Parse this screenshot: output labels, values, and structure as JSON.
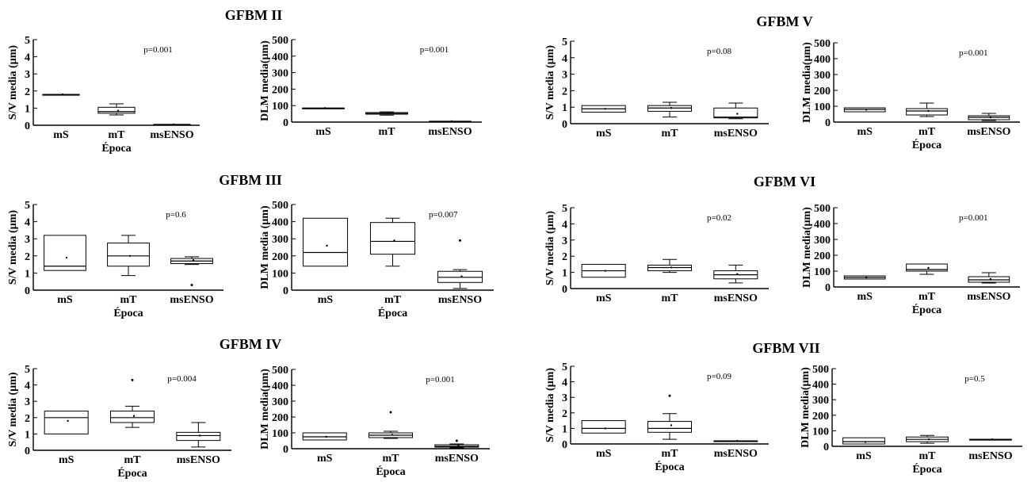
{
  "chart_data": [
    {
      "type": "box",
      "group": "GFBM II",
      "show_title": true,
      "ylabel": "S/V media (µm)",
      "xlabel": "Época",
      "p_value": "p=0.001",
      "ylim": [
        0,
        5
      ],
      "yticks": [
        "0",
        "1",
        "2",
        "3",
        "4",
        "5"
      ],
      "categories": [
        "mS",
        "mT",
        "msENSO"
      ],
      "boxes": [
        {
          "q1": 1.8,
          "median": 1.8,
          "q3": 1.8,
          "whisker_low": 1.8,
          "whisker_high": 1.8,
          "mean": 1.8,
          "outliers": []
        },
        {
          "q1": 0.7,
          "median": 0.8,
          "q3": 1.05,
          "whisker_low": 0.6,
          "whisker_high": 1.25,
          "mean": 0.85,
          "outliers": []
        },
        {
          "q1": 0.05,
          "median": 0.05,
          "q3": 0.05,
          "whisker_low": 0.05,
          "whisker_high": 0.05,
          "mean": 0.05,
          "outliers": []
        }
      ]
    },
    {
      "type": "box",
      "group": "GFBM II",
      "show_title": false,
      "ylabel": "DLM media(µm)",
      "xlabel": "",
      "p_value": "p=0.001",
      "ylim": [
        0,
        500
      ],
      "yticks": [
        "0",
        "100",
        "200",
        "300",
        "400",
        "500"
      ],
      "categories": [
        "mS",
        "mT",
        "msENSO"
      ],
      "boxes": [
        {
          "q1": 85,
          "median": 85,
          "q3": 85,
          "whisker_low": 85,
          "whisker_high": 85,
          "mean": 85,
          "outliers": []
        },
        {
          "q1": 48,
          "median": 52,
          "q3": 58,
          "whisker_low": 42,
          "whisker_high": 62,
          "mean": 52,
          "outliers": []
        },
        {
          "q1": 5,
          "median": 5,
          "q3": 5,
          "whisker_low": 5,
          "whisker_high": 5,
          "mean": 5,
          "outliers": []
        }
      ]
    },
    {
      "type": "box",
      "group": "GFBM III",
      "show_title": true,
      "ylabel": "S/V media (µm)",
      "xlabel": "Época",
      "p_value": "p=0.6",
      "ylim": [
        0,
        5
      ],
      "yticks": [
        "0",
        "1",
        "2",
        "3",
        "4",
        "5"
      ],
      "categories": [
        "mS",
        "mT",
        "msENSO"
      ],
      "boxes": [
        {
          "q1": 1.15,
          "median": 1.4,
          "q3": 3.2,
          "whisker_low": 1.15,
          "whisker_high": 3.2,
          "mean": 1.9,
          "outliers": []
        },
        {
          "q1": 1.4,
          "median": 2.0,
          "q3": 2.75,
          "whisker_low": 0.85,
          "whisker_high": 3.2,
          "mean": 2.0,
          "outliers": []
        },
        {
          "q1": 1.55,
          "median": 1.7,
          "q3": 1.85,
          "whisker_low": 1.5,
          "whisker_high": 1.95,
          "mean": 1.75,
          "outliers": [
            0.3
          ]
        }
      ]
    },
    {
      "type": "box",
      "group": "GFBM III",
      "show_title": false,
      "ylabel": "DLM media (µm)",
      "xlabel": "Época",
      "p_value": "p=0.007",
      "ylim": [
        0,
        500
      ],
      "yticks": [
        "0",
        "100",
        "200",
        "300",
        "400",
        "500"
      ],
      "categories": [
        "mS",
        "mT",
        "msENSO"
      ],
      "boxes": [
        {
          "q1": 140,
          "median": 220,
          "q3": 420,
          "whisker_low": 140,
          "whisker_high": 420,
          "mean": 260,
          "outliers": []
        },
        {
          "q1": 210,
          "median": 285,
          "q3": 395,
          "whisker_low": 140,
          "whisker_high": 420,
          "mean": 290,
          "outliers": []
        },
        {
          "q1": 45,
          "median": 75,
          "q3": 110,
          "whisker_low": 10,
          "whisker_high": 120,
          "mean": 80,
          "outliers": [
            290
          ]
        }
      ]
    },
    {
      "type": "box",
      "group": "GFBM IV",
      "show_title": true,
      "ylabel": "S/V media (µm)",
      "xlabel": "Época",
      "p_value": "p=0.004",
      "ylim": [
        0,
        5
      ],
      "yticks": [
        "0",
        "1",
        "2",
        "3",
        "4",
        "5"
      ],
      "categories": [
        "mS",
        "mT",
        "msENSO"
      ],
      "boxes": [
        {
          "q1": 1.0,
          "median": 2.0,
          "q3": 2.4,
          "whisker_low": 1.0,
          "whisker_high": 2.4,
          "mean": 1.8,
          "outliers": []
        },
        {
          "q1": 1.7,
          "median": 2.0,
          "q3": 2.4,
          "whisker_low": 1.4,
          "whisker_high": 2.7,
          "mean": 2.1,
          "outliers": [
            4.3
          ]
        },
        {
          "q1": 0.6,
          "median": 0.9,
          "q3": 1.1,
          "whisker_low": 0.2,
          "whisker_high": 1.7,
          "mean": 0.9,
          "outliers": []
        }
      ]
    },
    {
      "type": "box",
      "group": "GFBM IV",
      "show_title": false,
      "ylabel": "DLM media(µm)",
      "xlabel": "Época",
      "p_value": "p=0.001",
      "ylim": [
        0,
        500
      ],
      "yticks": [
        "0",
        "100",
        "200",
        "300",
        "400",
        "500"
      ],
      "categories": [
        "mS",
        "mT",
        "msENSO"
      ],
      "boxes": [
        {
          "q1": 55,
          "median": 75,
          "q3": 100,
          "whisker_low": 55,
          "whisker_high": 100,
          "mean": 75,
          "outliers": []
        },
        {
          "q1": 70,
          "median": 85,
          "q3": 100,
          "whisker_low": 65,
          "whisker_high": 110,
          "mean": 88,
          "outliers": [
            230
          ]
        },
        {
          "q1": 10,
          "median": 15,
          "q3": 25,
          "whisker_low": 5,
          "whisker_high": 30,
          "mean": 18,
          "outliers": [
            50
          ]
        }
      ]
    },
    {
      "type": "box",
      "group": "GFBM V",
      "show_title": true,
      "ylabel": "S/V media (µm)",
      "xlabel": "",
      "p_value": "p=0.08",
      "ylim": [
        0,
        5
      ],
      "yticks": [
        "0",
        "1",
        "2",
        "3",
        "4",
        "5"
      ],
      "categories": [
        "mS",
        "mT",
        "msENSO"
      ],
      "boxes": [
        {
          "q1": 0.7,
          "median": 0.9,
          "q3": 1.1,
          "whisker_low": 0.7,
          "whisker_high": 1.1,
          "mean": 0.9,
          "outliers": []
        },
        {
          "q1": 0.75,
          "median": 0.95,
          "q3": 1.1,
          "whisker_low": 0.4,
          "whisker_high": 1.3,
          "mean": 0.95,
          "outliers": []
        },
        {
          "q1": 0.35,
          "median": 0.4,
          "q3": 0.95,
          "whisker_low": 0.3,
          "whisker_high": 1.25,
          "mean": 0.6,
          "outliers": []
        }
      ]
    },
    {
      "type": "box",
      "group": "GFBM V",
      "show_title": false,
      "ylabel": "DLM media(µm)",
      "xlabel": "Época",
      "p_value": "p=0.001",
      "ylim": [
        0,
        500
      ],
      "yticks": [
        "0",
        "100",
        "200",
        "300",
        "400",
        "500"
      ],
      "categories": [
        "mS",
        "mT",
        "msENSO"
      ],
      "boxes": [
        {
          "q1": 65,
          "median": 80,
          "q3": 90,
          "whisker_low": 65,
          "whisker_high": 90,
          "mean": 78,
          "outliers": []
        },
        {
          "q1": 45,
          "median": 70,
          "q3": 85,
          "whisker_low": 35,
          "whisker_high": 120,
          "mean": 70,
          "outliers": []
        },
        {
          "q1": 15,
          "median": 30,
          "q3": 40,
          "whisker_low": 10,
          "whisker_high": 55,
          "mean": 30,
          "outliers": []
        }
      ]
    },
    {
      "type": "box",
      "group": "GFBM VI",
      "show_title": true,
      "ylabel": "S/V media (µm)",
      "xlabel": "",
      "p_value": "p=0.02",
      "ylim": [
        0,
        5
      ],
      "yticks": [
        "0",
        "1",
        "2",
        "3",
        "4",
        "5"
      ],
      "categories": [
        "mS",
        "mT",
        "msENSO"
      ],
      "boxes": [
        {
          "q1": 0.7,
          "median": 1.1,
          "q3": 1.5,
          "whisker_low": 0.7,
          "whisker_high": 1.5,
          "mean": 1.1,
          "outliers": []
        },
        {
          "q1": 1.1,
          "median": 1.3,
          "q3": 1.45,
          "whisker_low": 1.0,
          "whisker_high": 1.8,
          "mean": 1.3,
          "outliers": []
        },
        {
          "q1": 0.6,
          "median": 0.85,
          "q3": 1.1,
          "whisker_low": 0.35,
          "whisker_high": 1.45,
          "mean": 0.9,
          "outliers": []
        }
      ]
    },
    {
      "type": "box",
      "group": "GFBM VI",
      "show_title": false,
      "ylabel": "DLM media(µm)",
      "xlabel": "Época",
      "p_value": "p=0.001",
      "ylim": [
        0,
        500
      ],
      "yticks": [
        "0",
        "100",
        "200",
        "300",
        "400",
        "500"
      ],
      "categories": [
        "mS",
        "mT",
        "msENSO"
      ],
      "boxes": [
        {
          "q1": 50,
          "median": 60,
          "q3": 70,
          "whisker_low": 50,
          "whisker_high": 70,
          "mean": 60,
          "outliers": []
        },
        {
          "q1": 100,
          "median": 110,
          "q3": 145,
          "whisker_low": 80,
          "whisker_high": 145,
          "mean": 120,
          "outliers": []
        },
        {
          "q1": 30,
          "median": 45,
          "q3": 65,
          "whisker_low": 25,
          "whisker_high": 90,
          "mean": 50,
          "outliers": []
        }
      ]
    },
    {
      "type": "box",
      "group": "GFBM VII",
      "show_title": true,
      "ylabel": "S/V media (µm)",
      "xlabel": "Época",
      "p_value": "p=0.09",
      "ylim": [
        0,
        5
      ],
      "yticks": [
        "0",
        "1",
        "2",
        "3",
        "4",
        "5"
      ],
      "categories": [
        "mS",
        "mT",
        "msENSO"
      ],
      "boxes": [
        {
          "q1": 0.7,
          "median": 1.0,
          "q3": 1.5,
          "whisker_low": 0.7,
          "whisker_high": 1.5,
          "mean": 1.0,
          "outliers": []
        },
        {
          "q1": 0.75,
          "median": 1.0,
          "q3": 1.45,
          "whisker_low": 0.3,
          "whisker_high": 1.95,
          "mean": 1.2,
          "outliers": [
            3.1
          ]
        },
        {
          "q1": 0.2,
          "median": 0.2,
          "q3": 0.2,
          "whisker_low": 0.2,
          "whisker_high": 0.2,
          "mean": 0.2,
          "outliers": []
        }
      ]
    },
    {
      "type": "box",
      "group": "GFBM VII",
      "show_title": false,
      "ylabel": "DLM media(µm)",
      "xlabel": "Época",
      "p_value": "p=0.5",
      "ylim": [
        0,
        500
      ],
      "yticks": [
        "0",
        "100",
        "200",
        "300",
        "400",
        "500"
      ],
      "categories": [
        "mS",
        "mT",
        "msENSO"
      ],
      "boxes": [
        {
          "q1": 15,
          "median": 30,
          "q3": 55,
          "whisker_low": 15,
          "whisker_high": 55,
          "mean": 28,
          "outliers": []
        },
        {
          "q1": 30,
          "median": 45,
          "q3": 60,
          "whisker_low": 20,
          "whisker_high": 70,
          "mean": 45,
          "outliers": []
        },
        {
          "q1": 45,
          "median": 45,
          "q3": 45,
          "whisker_low": 45,
          "whisker_high": 45,
          "mean": 45,
          "outliers": []
        }
      ]
    }
  ]
}
